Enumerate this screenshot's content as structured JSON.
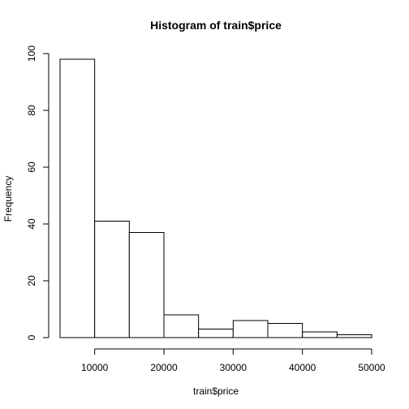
{
  "chart_data": {
    "type": "bar",
    "title": "Histogram of train$price",
    "xlabel": "train$price",
    "ylabel": "Frequency",
    "bins": [
      {
        "from": 5000,
        "to": 10000,
        "count": 98
      },
      {
        "from": 10000,
        "to": 15000,
        "count": 41
      },
      {
        "from": 15000,
        "to": 20000,
        "count": 37
      },
      {
        "from": 20000,
        "to": 25000,
        "count": 8
      },
      {
        "from": 25000,
        "to": 30000,
        "count": 3
      },
      {
        "from": 30000,
        "to": 35000,
        "count": 6
      },
      {
        "from": 35000,
        "to": 40000,
        "count": 5
      },
      {
        "from": 40000,
        "to": 45000,
        "count": 2
      },
      {
        "from": 45000,
        "to": 50000,
        "count": 1
      }
    ],
    "xlim": [
      5000,
      50000
    ],
    "ylim": [
      0,
      100
    ],
    "x_ticks": [
      "10000",
      "20000",
      "30000",
      "40000",
      "50000"
    ],
    "y_ticks": [
      "0",
      "20",
      "40",
      "60",
      "80",
      "100"
    ],
    "grid": false,
    "legend": "none"
  }
}
